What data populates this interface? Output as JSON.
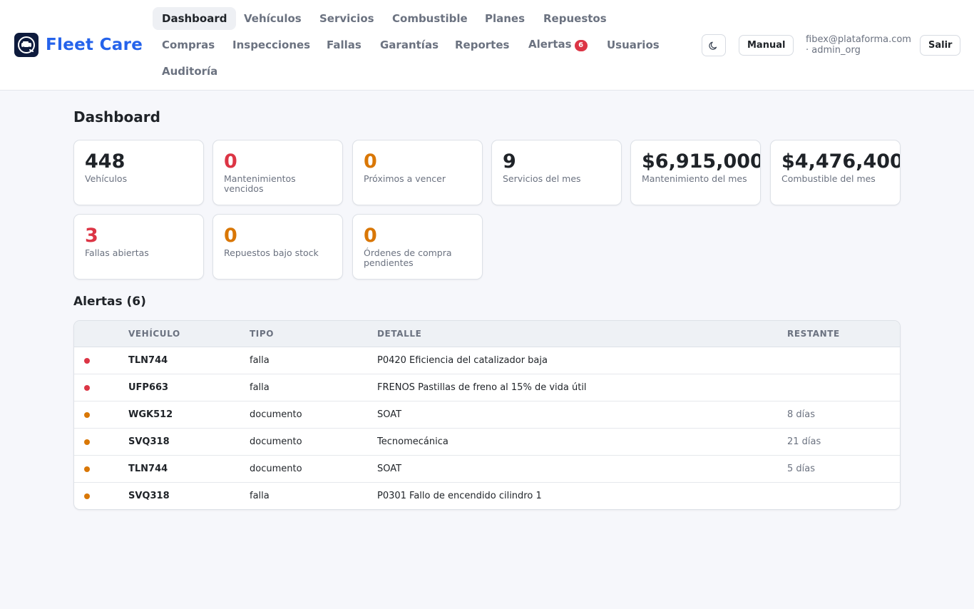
{
  "brand": {
    "name": "Fleet Care"
  },
  "nav": [
    {
      "label": "Dashboard",
      "active": true
    },
    {
      "label": "Vehículos"
    },
    {
      "label": "Servicios"
    },
    {
      "label": "Combustible"
    },
    {
      "label": "Planes"
    },
    {
      "label": "Repuestos"
    },
    {
      "label": "Compras"
    },
    {
      "label": "Inspecciones"
    },
    {
      "label": "Fallas"
    },
    {
      "label": "Garantías"
    },
    {
      "label": "Reportes"
    },
    {
      "label": "Alertas",
      "badge": "6"
    },
    {
      "label": "Usuarios"
    },
    {
      "label": "Auditoría"
    }
  ],
  "header": {
    "theme_icon": "moon-icon",
    "manual_label": "Manual",
    "user_email": "fibex@plataforma.com",
    "user_org": "· admin_org",
    "logout_label": "Salir"
  },
  "page": {
    "title": "Dashboard"
  },
  "stats": [
    {
      "value": "448",
      "label": "Vehículos",
      "color": "#1f2328"
    },
    {
      "value": "0",
      "label": "Mantenimientos vencidos",
      "color": "#dc3545"
    },
    {
      "value": "0",
      "label": "Próximos a vencer",
      "color": "#d97706"
    },
    {
      "value": "9",
      "label": "Servicios del mes",
      "color": "#1f2328"
    },
    {
      "value": "$6,915,000",
      "label": "Mantenimiento del mes",
      "color": "#1f2328"
    },
    {
      "value": "$4,476,400",
      "label": "Combustible del mes",
      "color": "#1f2328"
    },
    {
      "value": "3",
      "label": "Fallas abiertas",
      "color": "#dc3545"
    },
    {
      "value": "0",
      "label": "Repuestos bajo stock",
      "color": "#d97706"
    },
    {
      "value": "0",
      "label": "Órdenes de compra pendientes",
      "color": "#d97706"
    }
  ],
  "alerts": {
    "title": "Alertas (6)",
    "columns": [
      "VEHÍCULO",
      "TIPO",
      "DETALLE",
      "RESTANTE"
    ],
    "rows": [
      {
        "severity_color": "#dc3545",
        "vehicle": "TLN744",
        "type": "falla",
        "detail": "P0420 Eficiencia del catalizador baja",
        "remaining": ""
      },
      {
        "severity_color": "#dc3545",
        "vehicle": "UFP663",
        "type": "falla",
        "detail": "FRENOS Pastillas de freno al 15% de vida útil",
        "remaining": ""
      },
      {
        "severity_color": "#d97706",
        "vehicle": "WGK512",
        "type": "documento",
        "detail": "SOAT",
        "remaining": "8 días"
      },
      {
        "severity_color": "#d97706",
        "vehicle": "SVQ318",
        "type": "documento",
        "detail": "Tecnomecánica",
        "remaining": "21 días"
      },
      {
        "severity_color": "#d97706",
        "vehicle": "TLN744",
        "type": "documento",
        "detail": "SOAT",
        "remaining": "5 días"
      },
      {
        "severity_color": "#d97706",
        "vehicle": "SVQ318",
        "type": "falla",
        "detail": "P0301 Fallo de encendido cilindro 1",
        "remaining": ""
      }
    ]
  }
}
